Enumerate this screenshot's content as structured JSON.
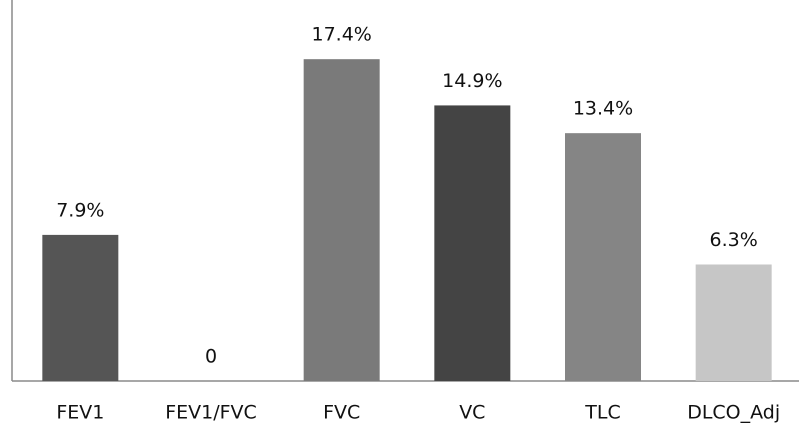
{
  "chart_data": {
    "type": "bar",
    "categories": [
      "FEV1",
      "FEV1/FVC",
      "FVC",
      "VC",
      "TLC",
      "DLCO_Adj"
    ],
    "values": [
      7.9,
      0,
      17.4,
      14.9,
      13.4,
      6.3
    ],
    "value_labels": [
      "7.9%",
      "0",
      "17.4%",
      "14.9%",
      "13.4%",
      "6.3%"
    ],
    "colors": [
      "#555555",
      "#555555",
      "#7a7a7a",
      "#444444",
      "#858585",
      "#c6c6c6"
    ],
    "ylim": [
      0,
      20.6
    ]
  }
}
